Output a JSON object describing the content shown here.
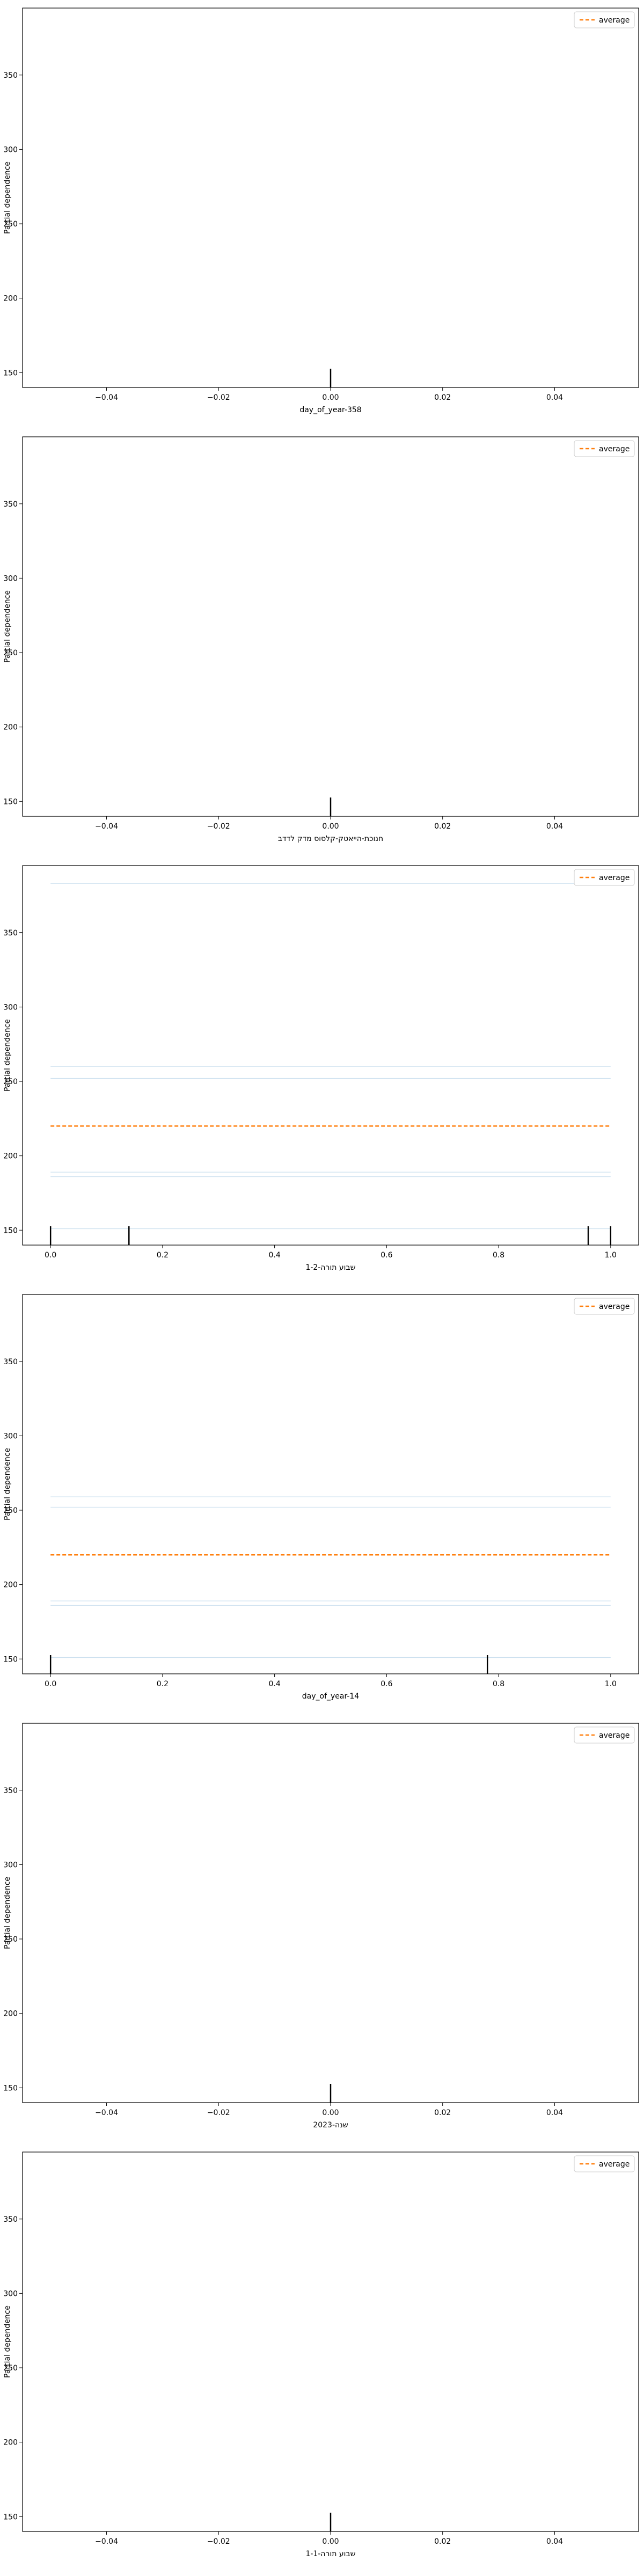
{
  "chart_data": [
    {
      "type": "line",
      "xlabel": "day_of_year-358",
      "ylabel": "Partial dependence",
      "xlim": [
        -0.055,
        0.055
      ],
      "ylim": [
        140,
        395
      ],
      "xticks": [
        -0.04,
        -0.02,
        0.0,
        0.02,
        0.04
      ],
      "xtick_labels": [
        "−0.04",
        "−0.02",
        "0.00",
        "0.02",
        "0.04"
      ],
      "yticks": [
        150,
        200,
        250,
        300,
        350
      ],
      "ytick_labels": [
        "150",
        "200",
        "250",
        "300",
        "350"
      ],
      "legend": {
        "label": "average",
        "placement": "top-right"
      },
      "average_color": "#ff7f0e",
      "ice_color": "#1f77b4",
      "rug_color": "#000000",
      "average": {
        "x": [],
        "y": []
      },
      "ice_levels": [],
      "rug": [
        0.0
      ]
    },
    {
      "type": "line",
      "xlabel": "חנוכת-הייאטק-קלסוס מדק לדדב",
      "ylabel": "Partial dependence",
      "xlim": [
        -0.055,
        0.055
      ],
      "ylim": [
        140,
        395
      ],
      "xticks": [
        -0.04,
        -0.02,
        0.0,
        0.02,
        0.04
      ],
      "xtick_labels": [
        "−0.04",
        "−0.02",
        "0.00",
        "0.02",
        "0.04"
      ],
      "yticks": [
        150,
        200,
        250,
        300,
        350
      ],
      "ytick_labels": [
        "150",
        "200",
        "250",
        "300",
        "350"
      ],
      "legend": {
        "label": "average",
        "placement": "top-right"
      },
      "average_color": "#ff7f0e",
      "ice_color": "#1f77b4",
      "rug_color": "#000000",
      "average": {
        "x": [],
        "y": []
      },
      "ice_levels": [],
      "rug": [
        0.0
      ]
    },
    {
      "type": "line",
      "xlabel": "שבוע תורה-1-2",
      "ylabel": "Partial dependence",
      "xlim": [
        -0.05,
        1.05
      ],
      "ylim": [
        140,
        395
      ],
      "xticks": [
        0.0,
        0.2,
        0.4,
        0.6,
        0.8,
        1.0
      ],
      "xtick_labels": [
        "0.0",
        "0.2",
        "0.4",
        "0.6",
        "0.8",
        "1.0"
      ],
      "yticks": [
        150,
        200,
        250,
        300,
        350
      ],
      "ytick_labels": [
        "150",
        "200",
        "250",
        "300",
        "350"
      ],
      "legend": {
        "label": "average",
        "placement": "top-right"
      },
      "average_color": "#ff7f0e",
      "ice_color": "#1f77b4",
      "rug_color": "#000000",
      "average": {
        "x": [
          0.0,
          1.0
        ],
        "y": [
          220,
          220
        ]
      },
      "ice_levels": [
        383,
        260,
        252,
        189,
        186,
        151
      ],
      "rug": [
        0.0,
        0.14,
        0.96,
        1.0
      ]
    },
    {
      "type": "line",
      "xlabel": "day_of_year-14",
      "ylabel": "Partial dependence",
      "xlim": [
        -0.05,
        1.05
      ],
      "ylim": [
        140,
        395
      ],
      "xticks": [
        0.0,
        0.2,
        0.4,
        0.6,
        0.8,
        1.0
      ],
      "xtick_labels": [
        "0.0",
        "0.2",
        "0.4",
        "0.6",
        "0.8",
        "1.0"
      ],
      "yticks": [
        150,
        200,
        250,
        300,
        350
      ],
      "ytick_labels": [
        "150",
        "200",
        "250",
        "300",
        "350"
      ],
      "legend": {
        "label": "average",
        "placement": "top-right"
      },
      "average_color": "#ff7f0e",
      "ice_color": "#1f77b4",
      "rug_color": "#000000",
      "average": {
        "x": [
          0.0,
          1.0
        ],
        "y": [
          220,
          220
        ]
      },
      "ice_levels": [
        259,
        252,
        189,
        186,
        151
      ],
      "rug": [
        0.0,
        0.78
      ]
    },
    {
      "type": "line",
      "xlabel": "שנה-2023",
      "ylabel": "Partial dependence",
      "xlim": [
        -0.055,
        0.055
      ],
      "ylim": [
        140,
        395
      ],
      "xticks": [
        -0.04,
        -0.02,
        0.0,
        0.02,
        0.04
      ],
      "xtick_labels": [
        "−0.04",
        "−0.02",
        "0.00",
        "0.02",
        "0.04"
      ],
      "yticks": [
        150,
        200,
        250,
        300,
        350
      ],
      "ytick_labels": [
        "150",
        "200",
        "250",
        "300",
        "350"
      ],
      "legend": {
        "label": "average",
        "placement": "top-right"
      },
      "average_color": "#ff7f0e",
      "ice_color": "#1f77b4",
      "rug_color": "#000000",
      "average": {
        "x": [],
        "y": []
      },
      "ice_levels": [],
      "rug": [
        0.0
      ]
    },
    {
      "type": "line",
      "xlabel": "שבוע תורה-1-1",
      "ylabel": "Partial dependence",
      "xlim": [
        -0.055,
        0.055
      ],
      "ylim": [
        140,
        395
      ],
      "xticks": [
        -0.04,
        -0.02,
        0.0,
        0.02,
        0.04
      ],
      "xtick_labels": [
        "−0.04",
        "−0.02",
        "0.00",
        "0.02",
        "0.04"
      ],
      "yticks": [
        150,
        200,
        250,
        300,
        350
      ],
      "ytick_labels": [
        "150",
        "200",
        "250",
        "300",
        "350"
      ],
      "legend": {
        "label": "average",
        "placement": "top-right"
      },
      "average_color": "#ff7f0e",
      "ice_color": "#1f77b4",
      "rug_color": "#000000",
      "average": {
        "x": [],
        "y": []
      },
      "ice_levels": [],
      "rug": [
        0.0
      ]
    }
  ]
}
